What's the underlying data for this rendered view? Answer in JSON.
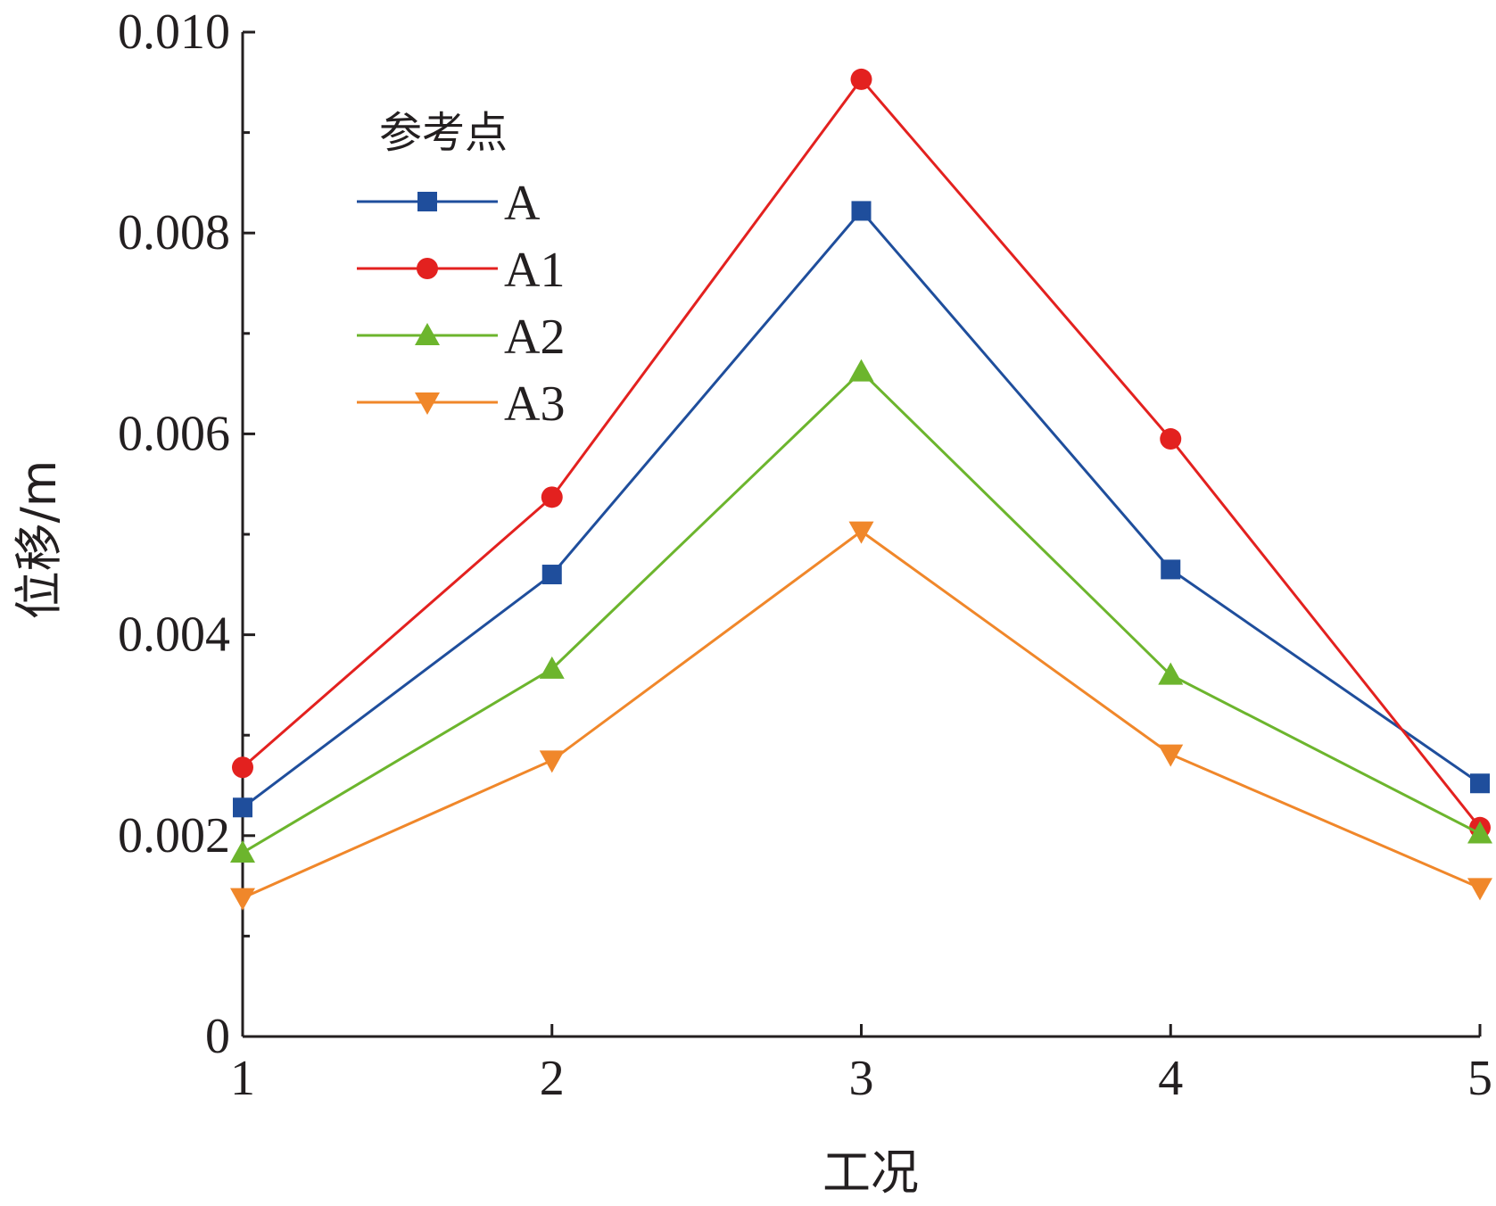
{
  "chart_data": {
    "type": "line",
    "x": [
      1,
      2,
      3,
      4,
      5
    ],
    "xlim": [
      1,
      5
    ],
    "ylim": [
      0,
      0.01
    ],
    "x_ticks": [
      "1",
      "2",
      "3",
      "4",
      "5"
    ],
    "y_ticks": [
      {
        "value": 0,
        "label": "0"
      },
      {
        "value": 0.002,
        "label": "0.002"
      },
      {
        "value": 0.004,
        "label": "0.004"
      },
      {
        "value": 0.006,
        "label": "0.006"
      },
      {
        "value": 0.008,
        "label": "0.008"
      },
      {
        "value": 0.01,
        "label": "0.010"
      }
    ],
    "y_minor_ticks": [
      0.001,
      0.003,
      0.005,
      0.007,
      0.009
    ],
    "xlabel": "工况",
    "ylabel": "位移/m",
    "legend_title": "参考点",
    "legend_position": "top-left",
    "grid": false,
    "series": [
      {
        "name": "A",
        "color": "#1f4e9c",
        "marker": "square",
        "values": [
          0.00228,
          0.0046,
          0.00822,
          0.00465,
          0.00252
        ]
      },
      {
        "name": "A1",
        "color": "#e3211f",
        "marker": "circle",
        "values": [
          0.00268,
          0.00537,
          0.00953,
          0.00595,
          0.00208
        ]
      },
      {
        "name": "A2",
        "color": "#6cb52d",
        "marker": "triangle-up",
        "values": [
          0.00183,
          0.00366,
          0.00662,
          0.0036,
          0.00202
        ]
      },
      {
        "name": "A3",
        "color": "#f0872a",
        "marker": "triangle-down",
        "values": [
          0.00138,
          0.00275,
          0.00503,
          0.00281,
          0.00148
        ]
      }
    ]
  }
}
